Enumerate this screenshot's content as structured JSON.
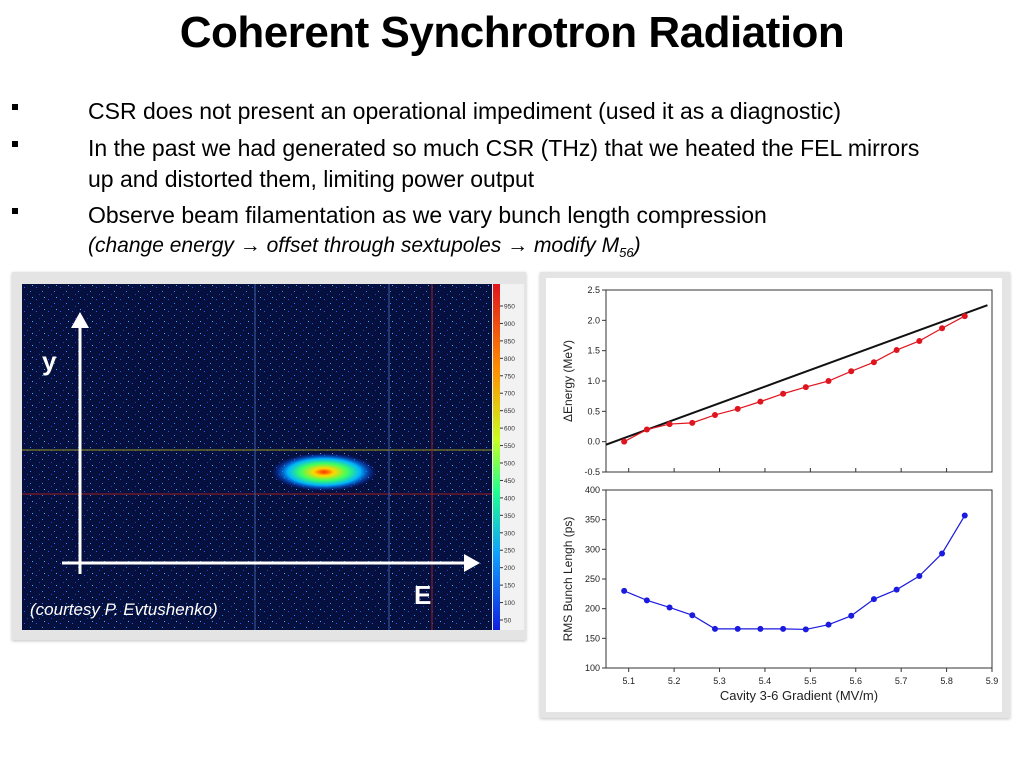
{
  "slide": {
    "title": "Coherent Synchrotron Radiation",
    "bullets": [
      "CSR does not present an operational impediment (used it as a diagnostic)",
      "In the past we had generated so much CSR (THz) that we heated the FEL mirrors up and distorted them, limiting power output",
      "Observe beam filamentation as we vary bunch length compression"
    ],
    "sub_note_pre": "(change energy ",
    "sub_note_arrow": "→",
    "sub_note_mid": " offset through sextupoles ",
    "sub_note_mid2": " modify M",
    "sub_note_subscript": "56",
    "sub_note_post": ")"
  },
  "beam_image": {
    "y_label": "y",
    "x_label": "E",
    "courtesy": "(courtesy P. Evtushenko)",
    "colorbar_ticks": [
      "950",
      "900",
      "850",
      "800",
      "750",
      "700",
      "650",
      "600",
      "550",
      "500",
      "450",
      "400",
      "350",
      "300",
      "250",
      "200",
      "150",
      "100",
      "50"
    ]
  },
  "chart_data": [
    {
      "type": "line",
      "title": "",
      "xlabel": "",
      "ylabel": "ΔEnergy (MeV)",
      "xlim": [
        5.05,
        5.9
      ],
      "ylim": [
        -0.5,
        2.5
      ],
      "yticks": [
        "2.5",
        "2.0",
        "1.5",
        "1.0",
        "0.5",
        "0.0",
        "-0.5"
      ],
      "series": [
        {
          "color": "#e0141e",
          "x": [
            5.09,
            5.14,
            5.19,
            5.24,
            5.29,
            5.34,
            5.39,
            5.44,
            5.49,
            5.54,
            5.59,
            5.64,
            5.69,
            5.74,
            5.79,
            5.84
          ],
          "y": [
            0.0,
            0.2,
            0.29,
            0.31,
            0.44,
            0.54,
            0.66,
            0.79,
            0.9,
            1.0,
            1.16,
            1.31,
            1.51,
            1.66,
            1.87,
            2.07
          ]
        }
      ],
      "fit_line": {
        "color": "#111111",
        "x": [
          5.05,
          5.89
        ],
        "y": [
          -0.05,
          2.25
        ]
      }
    },
    {
      "type": "line",
      "title": "",
      "xlabel": "Cavity 3-6 Gradient (MV/m)",
      "ylabel": "RMS Bunch Lengh (ps)",
      "xlim": [
        5.05,
        5.9
      ],
      "ylim": [
        100,
        400
      ],
      "xticks": [
        "5.1",
        "5.2",
        "5.3",
        "5.4",
        "5.5",
        "5.6",
        "5.7",
        "5.8",
        "5.9"
      ],
      "yticks": [
        "400",
        "350",
        "300",
        "250",
        "200",
        "150",
        "100"
      ],
      "series": [
        {
          "color": "#1a1ae0",
          "x": [
            5.09,
            5.14,
            5.19,
            5.24,
            5.29,
            5.34,
            5.39,
            5.44,
            5.49,
            5.54,
            5.59,
            5.64,
            5.69,
            5.74,
            5.79,
            5.84
          ],
          "y": [
            230,
            214,
            202,
            189,
            166,
            166,
            166,
            166,
            165,
            173,
            188,
            216,
            232,
            255,
            293,
            357
          ]
        }
      ]
    }
  ]
}
